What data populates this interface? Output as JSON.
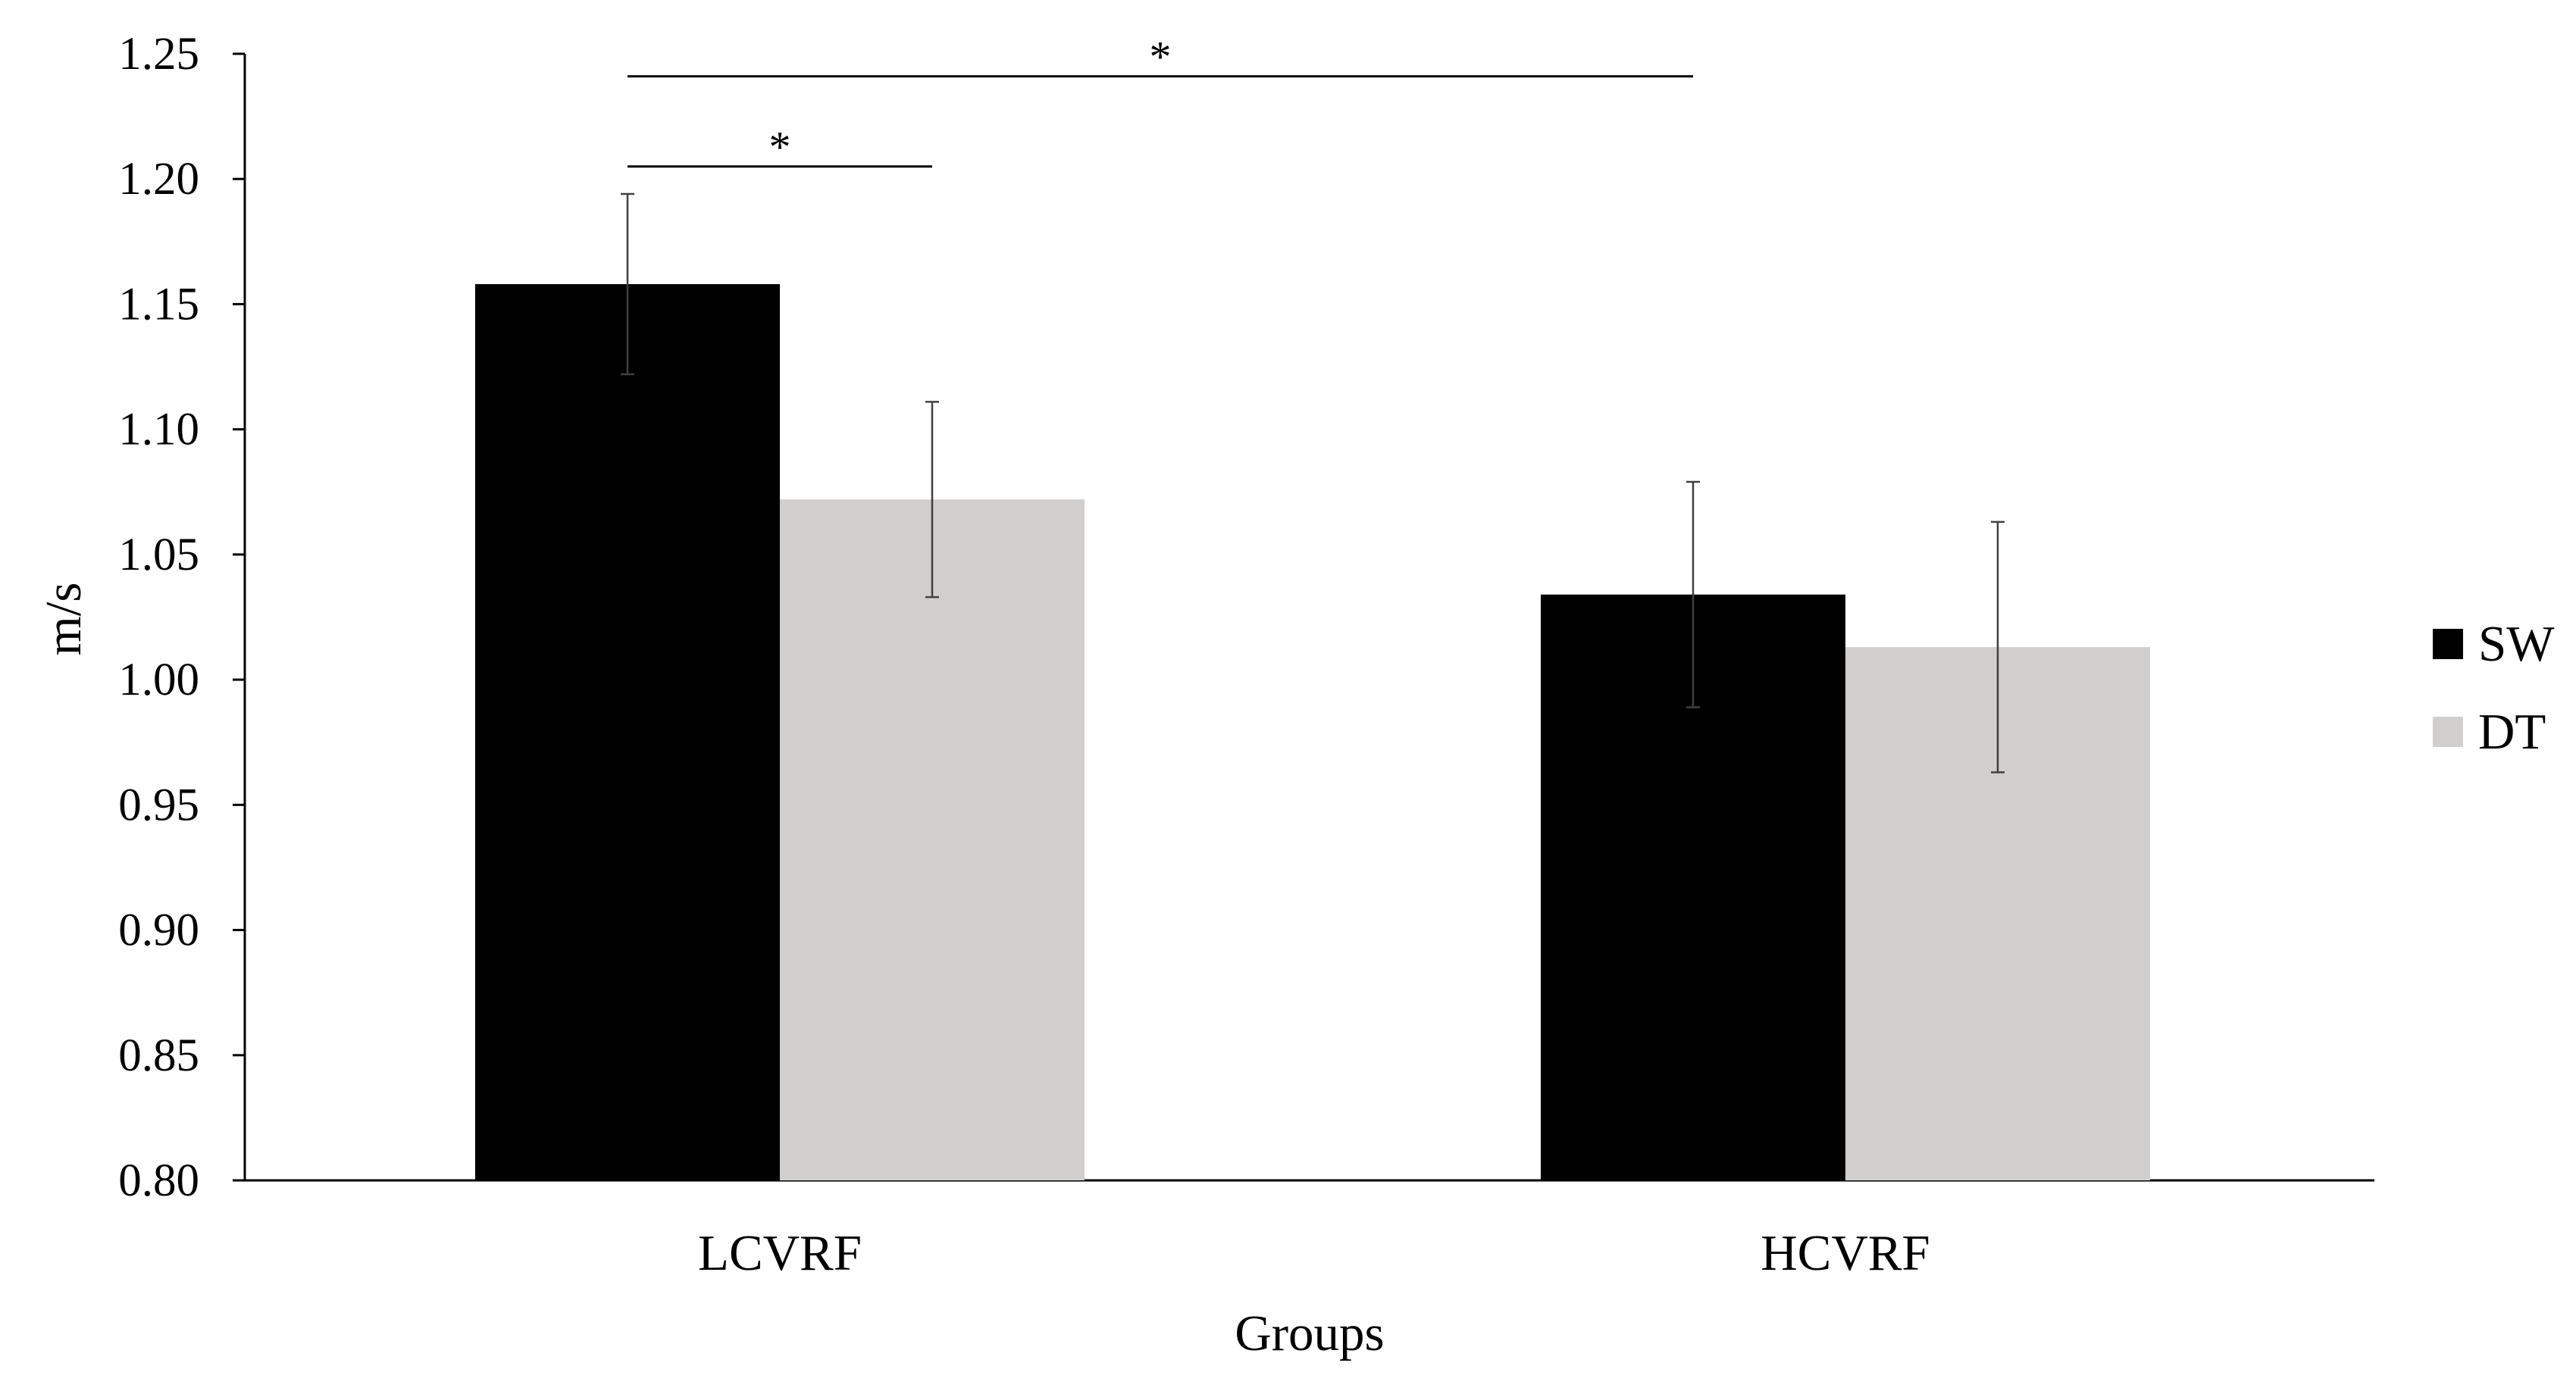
{
  "chart_data": {
    "type": "bar",
    "xlabel": "Groups",
    "ylabel": "m/s",
    "categories": [
      "LCVRF",
      "HCVRF"
    ],
    "ylim": [
      0.8,
      1.25
    ],
    "yticks": [
      "0.80",
      "0.85",
      "0.90",
      "0.95",
      "1.00",
      "1.05",
      "1.10",
      "1.15",
      "1.20",
      "1.25"
    ],
    "grid": false,
    "legend_position": "right",
    "series": [
      {
        "name": "SW",
        "color": "#000000",
        "values": [
          1.158,
          1.034
        ],
        "error": [
          0.036,
          0.045
        ]
      },
      {
        "name": "DT",
        "color": "#d0cfce",
        "values": [
          1.072,
          1.013
        ],
        "error": [
          0.039,
          0.05
        ]
      }
    ],
    "annotations": [
      {
        "label": "*",
        "from": {
          "category": 0,
          "series": 0
        },
        "to": {
          "category": 1,
          "series": 0
        },
        "level": 1.241
      },
      {
        "label": "*",
        "from": {
          "category": 0,
          "series": 0
        },
        "to": {
          "category": 0,
          "series": 1
        },
        "level": 1.205
      }
    ]
  }
}
